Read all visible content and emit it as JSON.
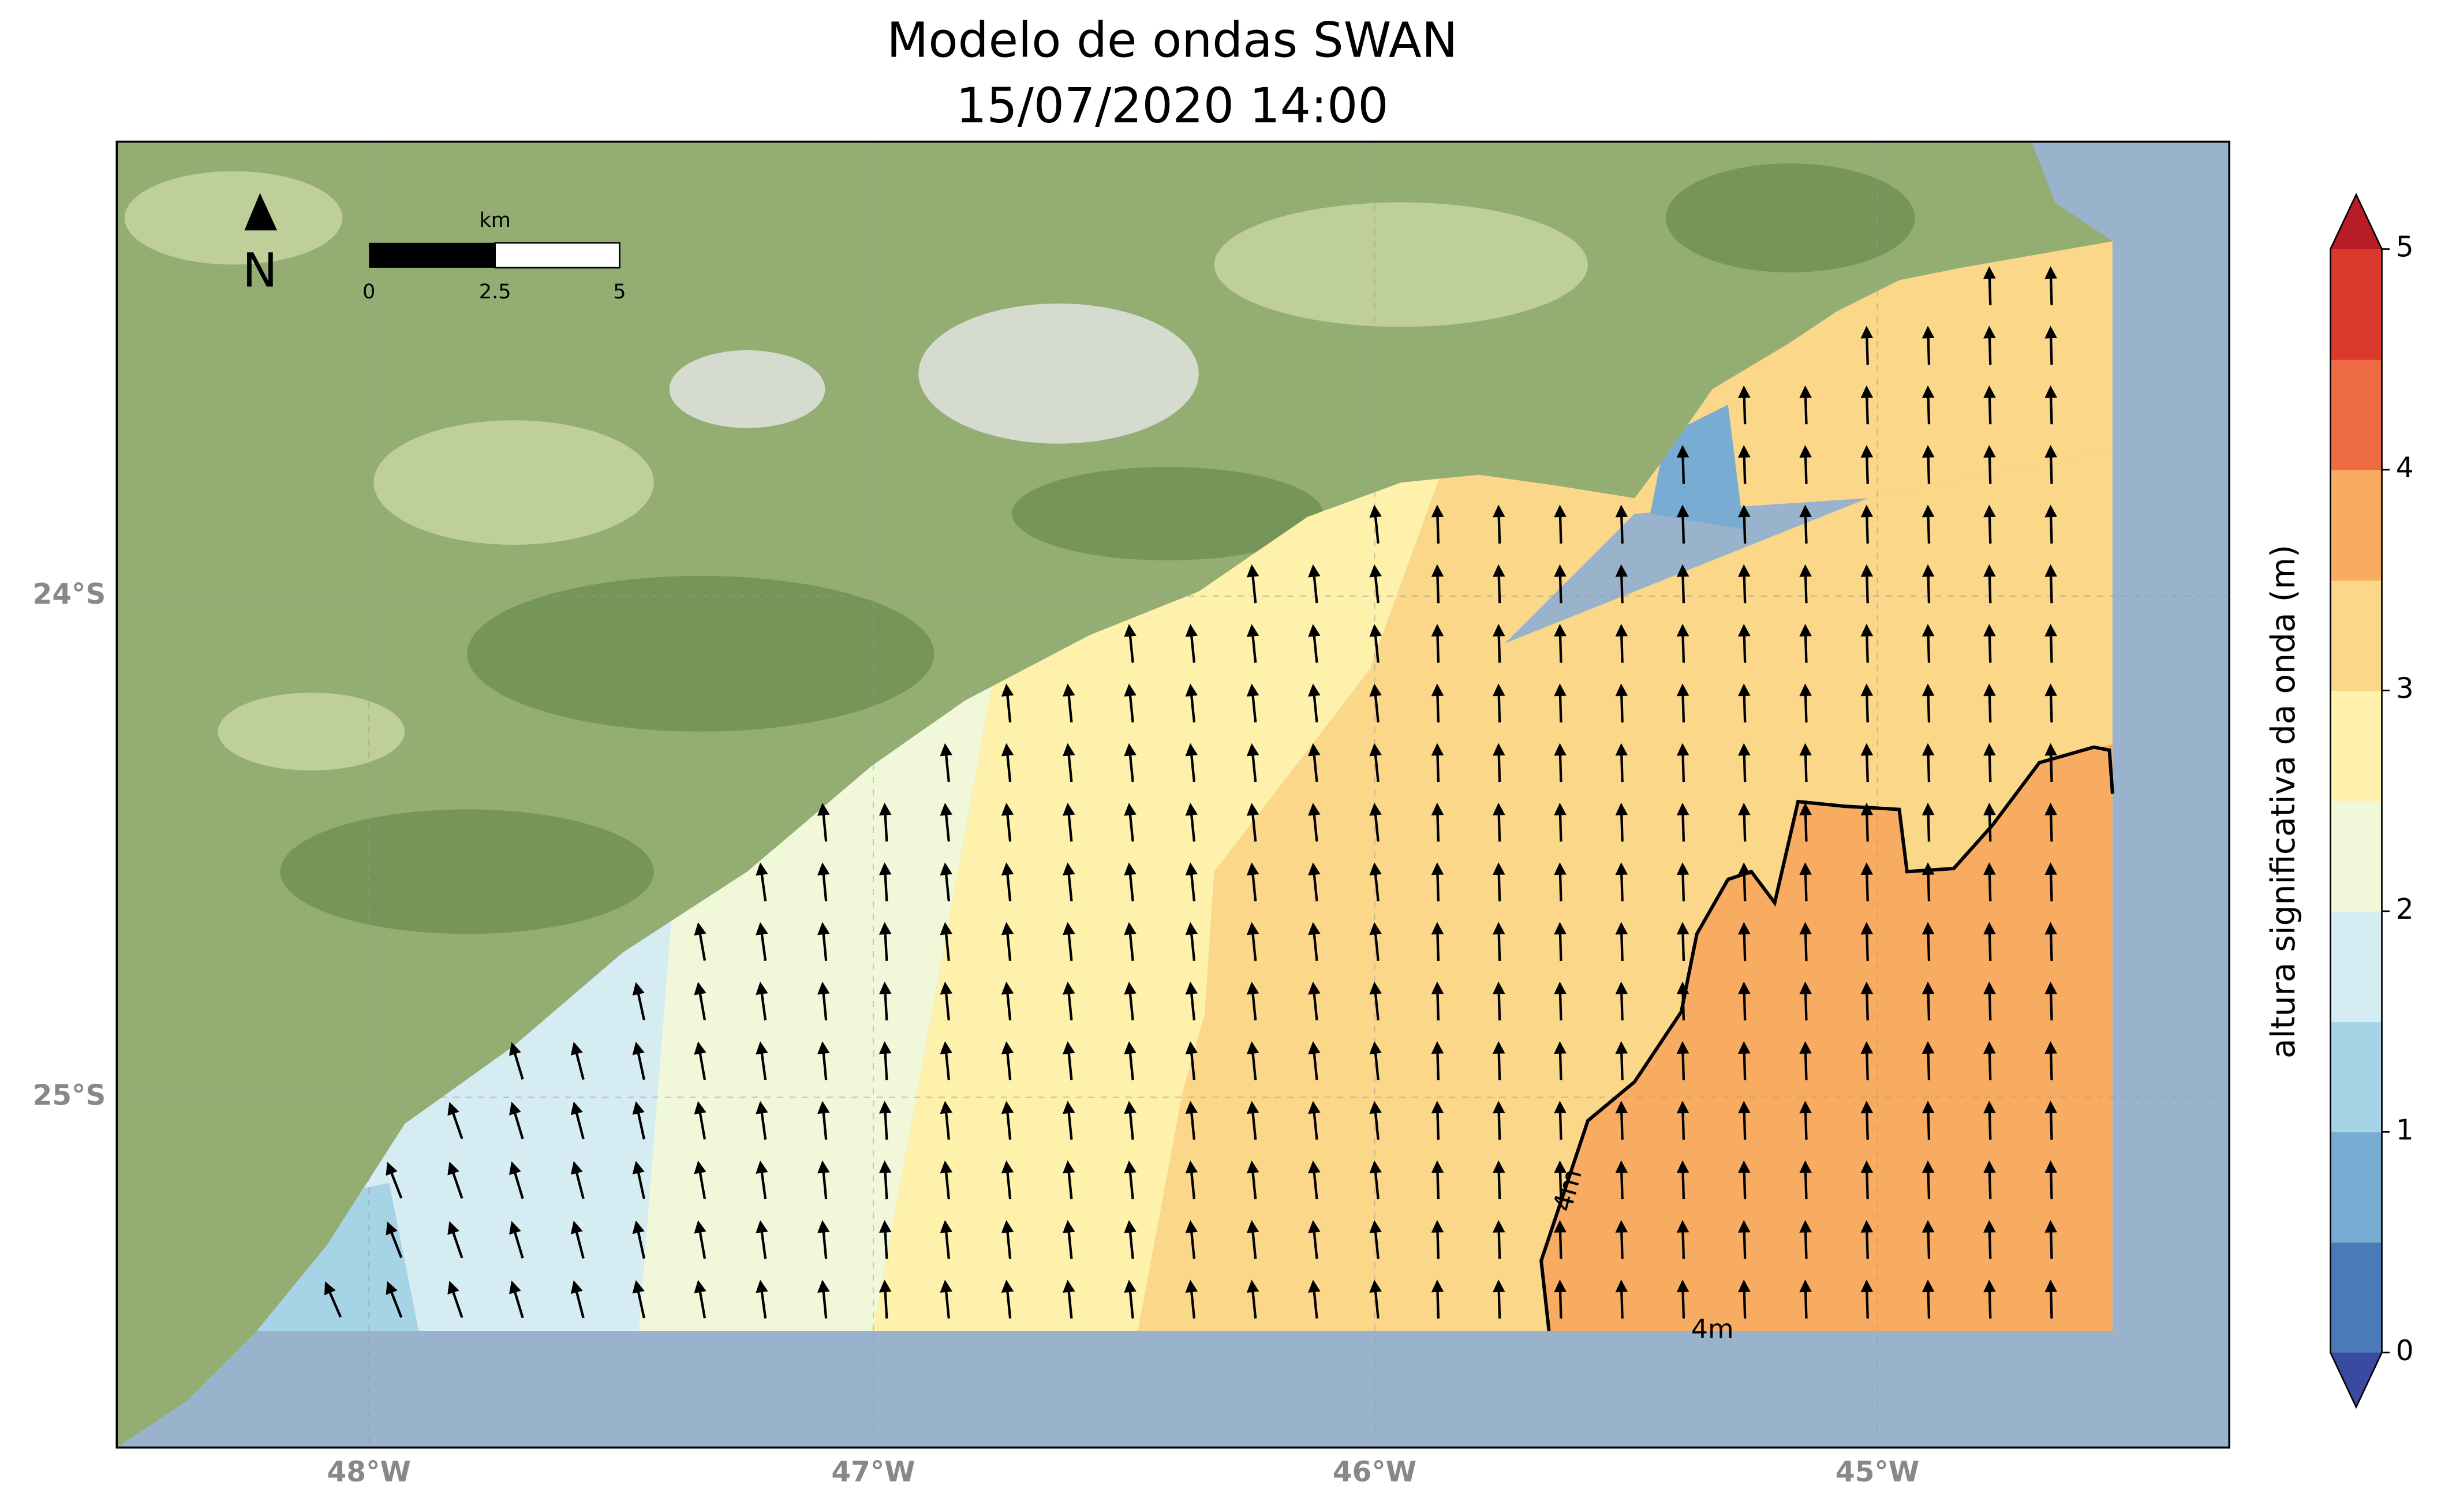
{
  "title": {
    "line1": "Modelo de ondas SWAN",
    "line2": "15/07/2020 14:00"
  },
  "map": {
    "x_labels": [
      "48°W",
      "47°W",
      "46°W",
      "45°W"
    ],
    "y_labels": [
      "24°S",
      "25°S"
    ],
    "north": "N",
    "scale_bar": {
      "unit": "km",
      "ticks": [
        "0",
        "2.5",
        "5"
      ]
    },
    "contour_labels": [
      "4m",
      "4m"
    ]
  },
  "colorbar": {
    "label": "altura significativa da onda (m)",
    "lim": [
      0,
      5
    ],
    "ticks": [
      0,
      1,
      2,
      3,
      4,
      5
    ],
    "colors": [
      "#4a7ab8",
      "#78acd3",
      "#a7d3e6",
      "#d6ecf3",
      "#f1f8da",
      "#fdf1ac",
      "#fbd78a",
      "#f7ac62",
      "#ee6b43",
      "#d93a2c"
    ],
    "under_color": "#3a4aa0",
    "over_color": "#b81c27"
  }
}
